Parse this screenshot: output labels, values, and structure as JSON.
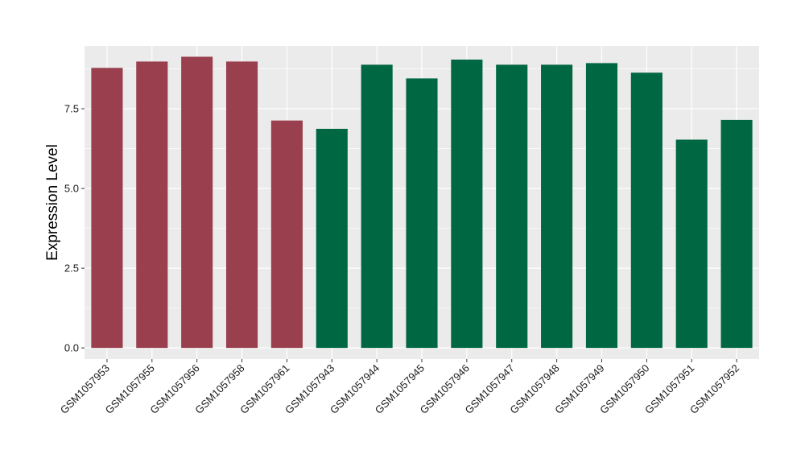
{
  "chart_data": {
    "type": "bar",
    "title": "",
    "xlabel": "",
    "ylabel": "Expression Level",
    "ylim": [
      -0.35,
      9.47
    ],
    "yticks": [
      0.0,
      2.5,
      5.0,
      7.5
    ],
    "ytick_labels": [
      "0.0",
      "2.5",
      "5.0",
      "7.5"
    ],
    "grid": true,
    "legend": "none",
    "categories": [
      "GSM1057953",
      "GSM1057955",
      "GSM1057956",
      "GSM1057958",
      "GSM1057961",
      "GSM1057943",
      "GSM1057944",
      "GSM1057945",
      "GSM1057946",
      "GSM1057947",
      "GSM1057948",
      "GSM1057949",
      "GSM1057950",
      "GSM1057951",
      "GSM1057952"
    ],
    "values": [
      8.78,
      8.98,
      9.13,
      8.98,
      7.13,
      6.87,
      8.88,
      8.45,
      9.04,
      8.88,
      8.88,
      8.93,
      8.63,
      6.53,
      7.15
    ],
    "group_colors": [
      "#9a3f4d",
      "#9a3f4d",
      "#9a3f4d",
      "#9a3f4d",
      "#9a3f4d",
      "#006743",
      "#006743",
      "#006743",
      "#006743",
      "#006743",
      "#006743",
      "#006743",
      "#006743",
      "#006743",
      "#006743"
    ],
    "panel_background": "#ebebeb",
    "grid_color": "#ffffff"
  }
}
